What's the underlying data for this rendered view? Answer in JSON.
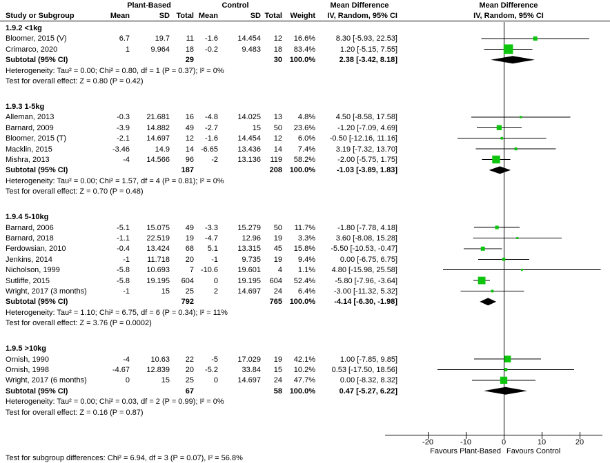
{
  "columns": {
    "group1": "Plant-Based",
    "group2": "Control",
    "study": "Study or Subgroup",
    "mean": "Mean",
    "sd": "SD",
    "total": "Total",
    "weight": "Weight",
    "md_header": "Mean Difference",
    "iv_header": "IV, Random, 95% CI"
  },
  "axis": {
    "ticks": [
      -20,
      -10,
      0,
      10,
      20
    ],
    "favours_left": "Favours Plant-Based",
    "favours_right": "Favours Control"
  },
  "footer": {
    "subgroup_test": "Test for subgroup differences: Chi² = 6.94, df = 3 (P = 0.07), I² = 56.8%"
  },
  "colors": {
    "marker_green": "#0dc50d",
    "diamond_black": "#000000",
    "line_black": "#000000"
  },
  "chart_data": {
    "type": "forest",
    "effect_measure": "Mean Difference, IV, Random, 95% CI",
    "x_axis": {
      "ticks": [
        -20,
        -10,
        0,
        10,
        20
      ],
      "min": -31.3,
      "max": 26
    },
    "subtotal_label": "Subtotal (95% CI)",
    "subgroups": [
      {
        "label": "1.9.2 <1kg",
        "studies": [
          {
            "name": "Bloomer, 2015 (V)",
            "mean1": "6.7",
            "sd1": "19.7",
            "n1": "11",
            "mean2": "-1.6",
            "sd2": "14.454",
            "n2": "12",
            "weight": "16.6%",
            "est": 8.3,
            "lo": -5.93,
            "hi": 22.53,
            "ci": "8.30 [-5.93, 22.53]"
          },
          {
            "name": "Crimarco, 2020",
            "mean1": "1",
            "sd1": "9.964",
            "n1": "18",
            "mean2": "-0.2",
            "sd2": "9.483",
            "n2": "18",
            "weight": "83.4%",
            "est": 1.2,
            "lo": -5.15,
            "hi": 7.55,
            "ci": "1.20 [-5.15, 7.55]"
          }
        ],
        "subtotal": {
          "n1": "29",
          "n2": "30",
          "weight": "100.0%",
          "est": 2.38,
          "lo": -3.42,
          "hi": 8.18,
          "ci": "2.38 [-3.42, 8.18]"
        },
        "heterogeneity": "Heterogeneity: Tau² = 0.00; Chi² = 0.80, df = 1 (P = 0.37); I² = 0%",
        "overall_effect": "Test for overall effect: Z = 0.80 (P = 0.42)"
      },
      {
        "label": "1.9.3 1-5kg",
        "studies": [
          {
            "name": "Alleman, 2013",
            "mean1": "-0.3",
            "sd1": "21.681",
            "n1": "16",
            "mean2": "-4.8",
            "sd2": "14.025",
            "n2": "13",
            "weight": "4.8%",
            "est": 4.5,
            "lo": -8.58,
            "hi": 17.58,
            "ci": "4.50 [-8.58, 17.58]"
          },
          {
            "name": "Barnard, 2009",
            "mean1": "-3.9",
            "sd1": "14.882",
            "n1": "49",
            "mean2": "-2.7",
            "sd2": "15",
            "n2": "50",
            "weight": "23.6%",
            "est": -1.2,
            "lo": -7.09,
            "hi": 4.69,
            "ci": "-1.20 [-7.09, 4.69]"
          },
          {
            "name": "Bloomer, 2015 (T)",
            "mean1": "-2.1",
            "sd1": "14.697",
            "n1": "12",
            "mean2": "-1.6",
            "sd2": "14.454",
            "n2": "12",
            "weight": "6.0%",
            "est": -0.5,
            "lo": -12.16,
            "hi": 11.16,
            "ci": "-0.50 [-12.16, 11.16]"
          },
          {
            "name": "Macklin, 2015",
            "mean1": "-3.46",
            "sd1": "14.9",
            "n1": "14",
            "mean2": "-6.65",
            "sd2": "13.436",
            "n2": "14",
            "weight": "7.4%",
            "est": 3.19,
            "lo": -7.32,
            "hi": 13.7,
            "ci": "3.19 [-7.32, 13.70]"
          },
          {
            "name": "Mishra, 2013",
            "mean1": "-4",
            "sd1": "14.566",
            "n1": "96",
            "mean2": "-2",
            "sd2": "13.136",
            "n2": "119",
            "weight": "58.2%",
            "est": -2.0,
            "lo": -5.75,
            "hi": 1.75,
            "ci": "-2.00 [-5.75, 1.75]"
          }
        ],
        "subtotal": {
          "n1": "187",
          "n2": "208",
          "weight": "100.0%",
          "est": -1.03,
          "lo": -3.89,
          "hi": 1.83,
          "ci": "-1.03 [-3.89, 1.83]"
        },
        "heterogeneity": "Heterogeneity: Tau² = 0.00; Chi² = 1.57, df = 4 (P = 0.81); I² = 0%",
        "overall_effect": "Test for overall effect: Z = 0.70 (P = 0.48)"
      },
      {
        "label": "1.9.4 5-10kg",
        "studies": [
          {
            "name": "Barnard, 2006",
            "mean1": "-5.1",
            "sd1": "15.075",
            "n1": "49",
            "mean2": "-3.3",
            "sd2": "15.279",
            "n2": "50",
            "weight": "11.7%",
            "est": -1.8,
            "lo": -7.78,
            "hi": 4.18,
            "ci": "-1.80 [-7.78, 4.18]"
          },
          {
            "name": "Barnard, 2018",
            "mean1": "-1.1",
            "sd1": "22.519",
            "n1": "19",
            "mean2": "-4.7",
            "sd2": "12.96",
            "n2": "19",
            "weight": "3.3%",
            "est": 3.6,
            "lo": -8.08,
            "hi": 15.28,
            "ci": "3.60 [-8.08, 15.28]"
          },
          {
            "name": "Ferdowsian, 2010",
            "mean1": "-0.4",
            "sd1": "13.424",
            "n1": "68",
            "mean2": "5.1",
            "sd2": "13.315",
            "n2": "45",
            "weight": "15.8%",
            "est": -5.5,
            "lo": -10.53,
            "hi": -0.47,
            "ci": "-5.50 [-10.53, -0.47]"
          },
          {
            "name": "Jenkins, 2014",
            "mean1": "-1",
            "sd1": "11.718",
            "n1": "20",
            "mean2": "-1",
            "sd2": "9.735",
            "n2": "19",
            "weight": "9.4%",
            "est": 0.0,
            "lo": -6.75,
            "hi": 6.75,
            "ci": "0.00 [-6.75, 6.75]"
          },
          {
            "name": "Nicholson, 1999",
            "mean1": "-5.8",
            "sd1": "10.693",
            "n1": "7",
            "mean2": "-10.6",
            "sd2": "19.601",
            "n2": "4",
            "weight": "1.1%",
            "est": 4.8,
            "lo": -15.98,
            "hi": 25.58,
            "ci": "4.80 [-15.98, 25.58]"
          },
          {
            "name": "Sutliffe, 2015",
            "mean1": "-5.8",
            "sd1": "19.195",
            "n1": "604",
            "mean2": "0",
            "sd2": "19.195",
            "n2": "604",
            "weight": "52.4%",
            "est": -5.8,
            "lo": -7.96,
            "hi": -3.64,
            "ci": "-5.80 [-7.96, -3.64]"
          },
          {
            "name": "Wright, 2017 (3 months)",
            "mean1": "-1",
            "sd1": "15",
            "n1": "25",
            "mean2": "2",
            "sd2": "14.697",
            "n2": "24",
            "weight": "6.4%",
            "est": -3.0,
            "lo": -11.32,
            "hi": 5.32,
            "ci": "-3.00 [-11.32, 5.32]"
          }
        ],
        "subtotal": {
          "n1": "792",
          "n2": "765",
          "weight": "100.0%",
          "est": -4.14,
          "lo": -6.3,
          "hi": -1.98,
          "ci": "-4.14 [-6.30, -1.98]"
        },
        "heterogeneity": "Heterogeneity: Tau² = 1.10; Chi² = 6.75, df = 6 (P = 0.34); I² = 11%",
        "overall_effect": "Test for overall effect: Z = 3.76 (P = 0.0002)"
      },
      {
        "label": "1.9.5 >10kg",
        "studies": [
          {
            "name": "Ornish, 1990",
            "mean1": "-4",
            "sd1": "10.63",
            "n1": "22",
            "mean2": "-5",
            "sd2": "17.029",
            "n2": "19",
            "weight": "42.1%",
            "est": 1.0,
            "lo": -7.85,
            "hi": 9.85,
            "ci": "1.00 [-7.85, 9.85]"
          },
          {
            "name": "Ornish, 1998",
            "mean1": "-4.67",
            "sd1": "12.839",
            "n1": "20",
            "mean2": "-5.2",
            "sd2": "33.84",
            "n2": "15",
            "weight": "10.2%",
            "est": 0.53,
            "lo": -17.5,
            "hi": 18.56,
            "ci": "0.53 [-17.50, 18.56]"
          },
          {
            "name": "Wright, 2017 (6 months)",
            "mean1": "0",
            "sd1": "15",
            "n1": "25",
            "mean2": "0",
            "sd2": "14.697",
            "n2": "24",
            "weight": "47.7%",
            "est": 0.0,
            "lo": -8.32,
            "hi": 8.32,
            "ci": "0.00 [-8.32, 8.32]"
          }
        ],
        "subtotal": {
          "n1": "67",
          "n2": "58",
          "weight": "100.0%",
          "est": 0.47,
          "lo": -5.27,
          "hi": 6.22,
          "ci": "0.47 [-5.27, 6.22]"
        },
        "heterogeneity": "Heterogeneity: Tau² = 0.00; Chi² = 0.03, df = 2 (P = 0.99); I² = 0%",
        "overall_effect": "Test for overall effect: Z = 0.16 (P = 0.87)"
      }
    ]
  }
}
